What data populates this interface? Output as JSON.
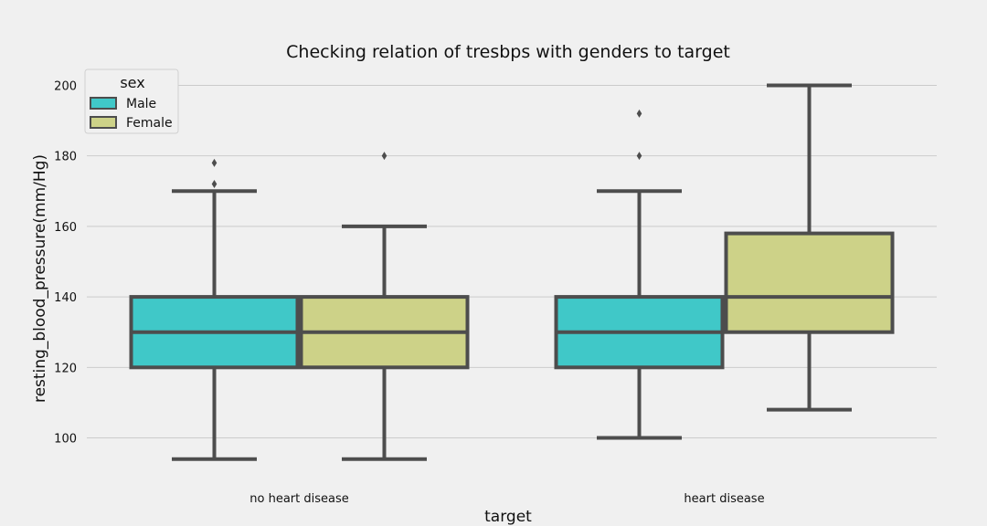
{
  "chart_data": {
    "type": "box",
    "title": "Checking relation of tresbps with genders to target",
    "xlabel": "target",
    "ylabel": "resting_blood_pressure(mm/Hg)",
    "categories": [
      "no heart disease",
      "heart disease"
    ],
    "ylim": [
      89,
      204
    ],
    "yticks": [
      100,
      120,
      140,
      160,
      180,
      200
    ],
    "grid": "y",
    "legend": {
      "title": "sex",
      "placement": "top-left",
      "entries": [
        "Male",
        "Female"
      ]
    },
    "series": [
      {
        "name": "Male",
        "color": "#40c8c8",
        "boxes": [
          {
            "whisker_low": 94,
            "q1": 120,
            "median": 130,
            "q3": 140,
            "whisker_high": 170,
            "outliers": [
              172,
              178
            ]
          },
          {
            "whisker_low": 100,
            "q1": 120,
            "median": 130,
            "q3": 140,
            "whisker_high": 170,
            "outliers": [
              180,
              192
            ]
          }
        ]
      },
      {
        "name": "Female",
        "color": "#cdd288",
        "boxes": [
          {
            "whisker_low": 94,
            "q1": 120,
            "median": 130,
            "q3": 140,
            "whisker_high": 160,
            "outliers": [
              180
            ]
          },
          {
            "whisker_low": 108,
            "q1": 130,
            "median": 140,
            "q3": 158,
            "whisker_high": 200,
            "outliers": []
          }
        ]
      }
    ]
  }
}
